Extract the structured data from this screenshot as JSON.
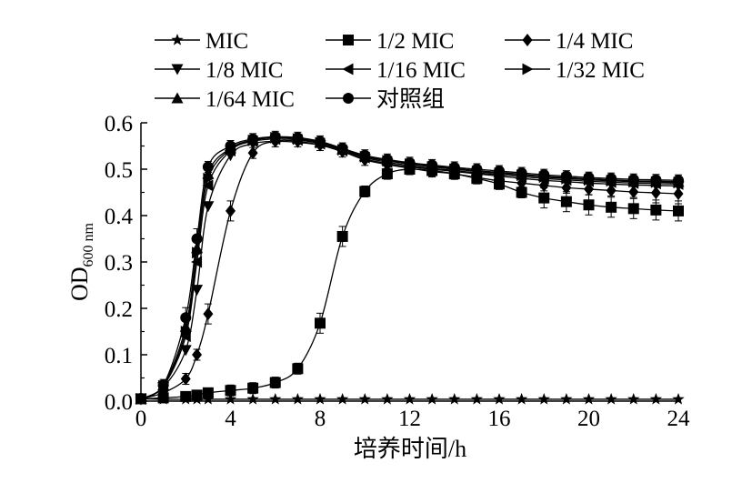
{
  "chart_data": {
    "type": "line",
    "xlabel": "培养时间/h",
    "ylabel_main": "OD",
    "ylabel_sub": "600 nm",
    "xlim": [
      0,
      24
    ],
    "ylim": [
      0,
      0.6
    ],
    "xticks": [
      0,
      4,
      8,
      12,
      16,
      20,
      24
    ],
    "yticks": [
      0,
      0.1,
      0.2,
      0.3,
      0.4,
      0.5,
      0.6
    ],
    "xtick_labels": [
      "0",
      "4",
      "8",
      "12",
      "16",
      "20",
      "24"
    ],
    "ytick_labels": [
      "0.0",
      "0.1",
      "0.2",
      "0.3",
      "0.4",
      "0.5",
      "0.6"
    ],
    "grid": false,
    "legend_position": "top",
    "x": [
      0,
      1,
      2,
      2.5,
      3,
      4,
      5,
      6,
      7,
      8,
      9,
      10,
      11,
      12,
      13,
      14,
      15,
      16,
      17,
      18,
      19,
      20,
      21,
      22,
      23,
      24
    ],
    "series": [
      {
        "name": "MIC",
        "marker": "star",
        "values": [
          0.005,
          0.004,
          0.004,
          0.004,
          0.004,
          0.004,
          0.004,
          0.004,
          0.004,
          0.004,
          0.004,
          0.004,
          0.004,
          0.004,
          0.004,
          0.004,
          0.004,
          0.004,
          0.004,
          0.004,
          0.004,
          0.004,
          0.004,
          0.004,
          0.004,
          0.004
        ]
      },
      {
        "name": "1/2 MIC",
        "marker": "square",
        "values": [
          0.005,
          0.007,
          0.01,
          0.013,
          0.018,
          0.023,
          0.028,
          0.04,
          0.07,
          0.168,
          0.355,
          0.452,
          0.49,
          0.5,
          0.497,
          0.49,
          0.48,
          0.468,
          0.45,
          0.438,
          0.43,
          0.423,
          0.418,
          0.415,
          0.412,
          0.41
        ]
      },
      {
        "name": "1/4 MIC",
        "marker": "diamond",
        "values": [
          0.005,
          0.018,
          0.048,
          0.1,
          0.188,
          0.41,
          0.535,
          0.56,
          0.56,
          0.552,
          0.538,
          0.52,
          0.51,
          0.502,
          0.495,
          0.49,
          0.482,
          0.475,
          0.47,
          0.465,
          0.46,
          0.457,
          0.454,
          0.451,
          0.449,
          0.447
        ]
      },
      {
        "name": "1/8 MIC",
        "marker": "triangle-down",
        "values": [
          0.005,
          0.03,
          0.11,
          0.24,
          0.42,
          0.53,
          0.555,
          0.56,
          0.558,
          0.552,
          0.538,
          0.522,
          0.512,
          0.505,
          0.5,
          0.495,
          0.49,
          0.485,
          0.48,
          0.476,
          0.473,
          0.47,
          0.468,
          0.466,
          0.465,
          0.464
        ]
      },
      {
        "name": "1/16 MIC",
        "marker": "triangle-left",
        "values": [
          0.005,
          0.032,
          0.14,
          0.3,
          0.465,
          0.54,
          0.56,
          0.565,
          0.563,
          0.555,
          0.54,
          0.525,
          0.515,
          0.508,
          0.502,
          0.497,
          0.492,
          0.488,
          0.484,
          0.48,
          0.477,
          0.474,
          0.472,
          0.47,
          0.469,
          0.468
        ]
      },
      {
        "name": "1/32 MIC",
        "marker": "triangle-right",
        "values": [
          0.005,
          0.033,
          0.15,
          0.32,
          0.48,
          0.543,
          0.562,
          0.568,
          0.565,
          0.557,
          0.542,
          0.527,
          0.518,
          0.511,
          0.505,
          0.5,
          0.495,
          0.491,
          0.487,
          0.483,
          0.48,
          0.477,
          0.475,
          0.473,
          0.472,
          0.471
        ]
      },
      {
        "name": "1/64 MIC",
        "marker": "triangle-up",
        "values": [
          0.005,
          0.034,
          0.16,
          0.33,
          0.49,
          0.545,
          0.563,
          0.569,
          0.566,
          0.558,
          0.543,
          0.528,
          0.519,
          0.512,
          0.507,
          0.502,
          0.497,
          0.493,
          0.489,
          0.485,
          0.482,
          0.479,
          0.477,
          0.475,
          0.474,
          0.473
        ]
      },
      {
        "name": "对照组",
        "marker": "circle",
        "values": [
          0.006,
          0.035,
          0.18,
          0.35,
          0.505,
          0.55,
          0.565,
          0.57,
          0.568,
          0.56,
          0.545,
          0.53,
          0.521,
          0.514,
          0.509,
          0.504,
          0.5,
          0.496,
          0.492,
          0.488,
          0.485,
          0.482,
          0.48,
          0.478,
          0.477,
          0.476
        ]
      }
    ]
  }
}
